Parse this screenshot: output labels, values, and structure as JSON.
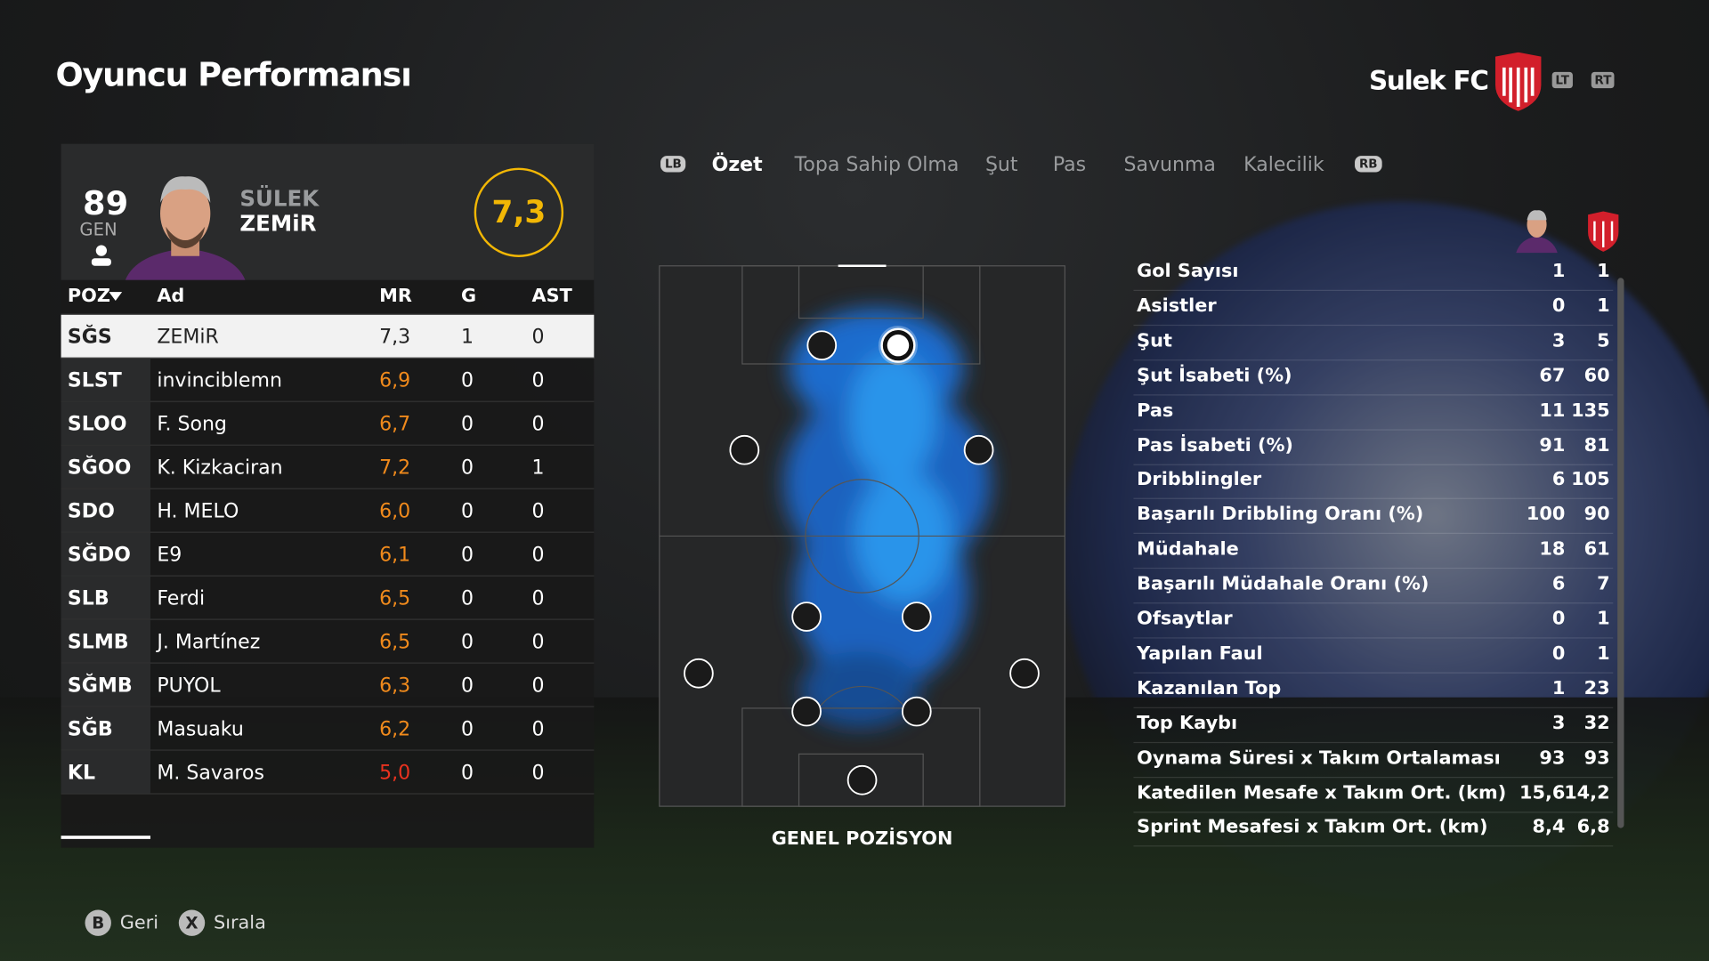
{
  "header": {
    "title": "Oyuncu Performansı",
    "team": "Sulek FC",
    "buttons": [
      "LT",
      "RT"
    ]
  },
  "player": {
    "rating": "89",
    "rating_label": "GEN",
    "first_name": "SÜLEK",
    "last_name": "ZEMiR",
    "match_rating": "7,3"
  },
  "table": {
    "columns": [
      "POZ",
      "Ad",
      "MR",
      "G",
      "AST"
    ],
    "rows": [
      [
        "SĞS",
        "ZEMiR",
        "7,3",
        "1",
        "0"
      ],
      [
        "SLST",
        "invinciblemn",
        "6,9",
        "0",
        "0"
      ],
      [
        "SLOO",
        "F. Song",
        "6,7",
        "0",
        "0"
      ],
      [
        "SĞOO",
        "K. Kizkaciran",
        "7,2",
        "0",
        "1"
      ],
      [
        "SDO",
        "H. MELO",
        "6,0",
        "0",
        "0"
      ],
      [
        "SĞDO",
        "E9",
        "6,1",
        "0",
        "0"
      ],
      [
        "SLB",
        "Ferdi",
        "6,5",
        "0",
        "0"
      ],
      [
        "SLMB",
        "J. Martínez",
        "6,5",
        "0",
        "0"
      ],
      [
        "SĞMB",
        "PUYOL",
        "6,3",
        "0",
        "0"
      ],
      [
        "SĞB",
        "Masuaku",
        "6,2",
        "0",
        "0"
      ],
      [
        "KL",
        "M. Savaros",
        "5,0",
        "0",
        "0"
      ]
    ]
  },
  "tabs": {
    "left_button": "LB",
    "items": [
      "Özet",
      "Topa Sahip Olma",
      "Şut",
      "Pas",
      "Savunma",
      "Kalecilik"
    ],
    "right_button": "RB"
  },
  "pitch": {
    "label": "GENEL POZİSYON"
  },
  "stats": {
    "rows": [
      [
        "Gol Sayısı",
        "1",
        "1"
      ],
      [
        "Asistler",
        "0",
        "1"
      ],
      [
        "Şut",
        "3",
        "5"
      ],
      [
        "Şut İsabeti (%)",
        "67",
        "60"
      ],
      [
        "Pas",
        "11",
        "135"
      ],
      [
        "Pas İsabeti (%)",
        "91",
        "81"
      ],
      [
        "Dribblingler",
        "6",
        "105"
      ],
      [
        "Başarılı Dribbling Oranı (%)",
        "100",
        "90"
      ],
      [
        "Müdahale",
        "18",
        "61"
      ],
      [
        "Başarılı Müdahale Oranı (%)",
        "6",
        "7"
      ],
      [
        "Ofsaytlar",
        "0",
        "1"
      ],
      [
        "Yapılan Faul",
        "0",
        "1"
      ],
      [
        "Kazanılan Top",
        "1",
        "23"
      ],
      [
        "Top Kaybı",
        "3",
        "32"
      ],
      [
        "Oynama Süresi x Takım Ortalaması",
        "93",
        "93"
      ],
      [
        "Katedilen Mesafe x Takım Ort. (km)",
        "15,6",
        "14,2"
      ],
      [
        "Sprint Mesafesi x Takım Ort. (km)",
        "8,4",
        "6,8"
      ]
    ]
  },
  "footer": {
    "buttons": [
      {
        "key": "B",
        "label": "Geri"
      },
      {
        "key": "X",
        "label": "Sırala"
      }
    ]
  }
}
